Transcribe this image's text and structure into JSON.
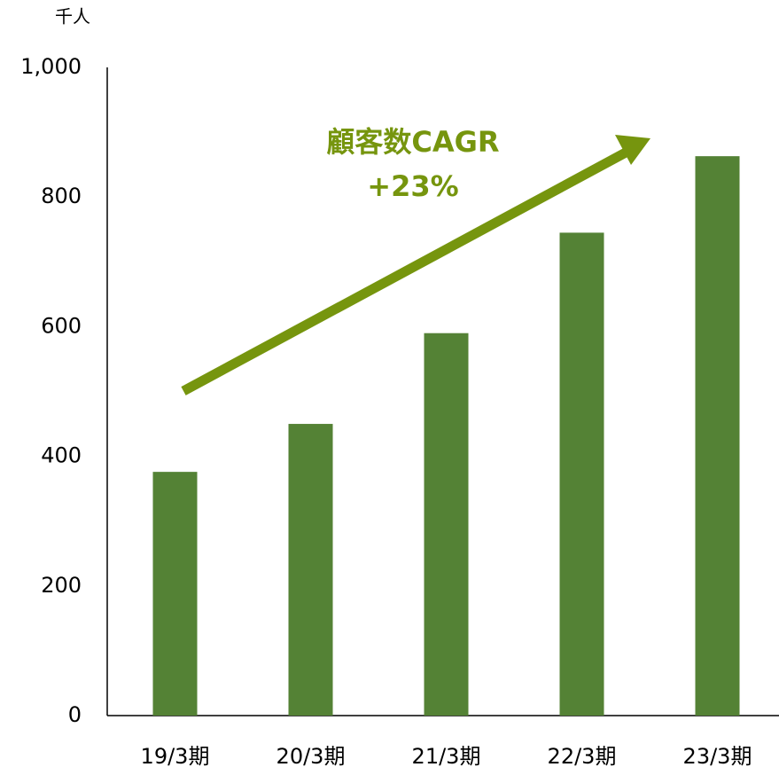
{
  "chart_data": {
    "type": "bar",
    "y_label": "千人",
    "categories": [
      "19/3期",
      "20/3期",
      "21/3期",
      "22/3期",
      "23/3期"
    ],
    "values": [
      376,
      450,
      590,
      745,
      863
    ],
    "color": "#548235",
    "ylim": [
      0,
      1000
    ],
    "yticks": [
      0,
      200,
      400,
      600,
      800,
      {
        "value": 1000,
        "label": "1,000"
      }
    ],
    "grid": false,
    "annotation": [
      "顧客数CAGR",
      "+23%"
    ],
    "annotation_color": "#76950e"
  }
}
